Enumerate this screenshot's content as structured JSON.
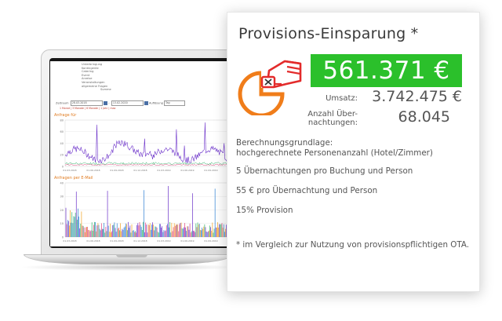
{
  "card": {
    "title": "Provisions-Einsparung *",
    "amount": "561.371 €",
    "umsatz_label": "Umsatz:",
    "umsatz_value": "3.742.475 €",
    "nights_label_line1": "Anzahl Über-",
    "nights_label_line2": "nachtungen:",
    "nights_value": "68.045",
    "basis_heading": "Berechnungsgrundlage:",
    "basis_subheading": "hochgerechnete Personenanzahl (Hotel/Zimmer)",
    "basis_line_1": "5 Übernachtungen pro Buchung und Person",
    "basis_line_2": "55 € pro Übernachtung und Person",
    "basis_line_3": "15% Provision",
    "footnote": "* im Vergleich zur Nutzung von provisionspflichtigen OTA.",
    "accent_color": "#2bc02b",
    "icon_colors": {
      "pie": "#f07d1a",
      "hand": "#e32b2b"
    },
    "icon_name": "commission-savings-icon"
  },
  "screen": {
    "menu_items": [
      "Unterbringung",
      "Kontingente",
      "Catering",
      "Event",
      "Anreise",
      "Veranstaltungen",
      "allgemeine Fragen",
      "Summe"
    ],
    "range_label": "Zeitraum",
    "date_from": "28.03.2018",
    "date_to": "13.02.2020",
    "resolution_label": "Auflösung",
    "resolution_value": "Tag",
    "quick_links": "1 Monat | 3 Monate | 6 Monate | 1 Jahr | max",
    "chart1_title": "Anfrage für",
    "chart2_title": "Anfragen per E-Mail",
    "chart1_yticks": [
      "80",
      "60",
      "40",
      "20",
      "0"
    ],
    "chart2_yticks": [
      "40",
      "30",
      "20",
      "10",
      "0"
    ],
    "xticks": [
      "01.03.2018",
      "01.06.2018",
      "01.09.2018",
      "01.12.2018",
      "01.03.2019",
      "01.06.2019",
      "01.09.2019",
      "01.12.2019"
    ]
  }
}
